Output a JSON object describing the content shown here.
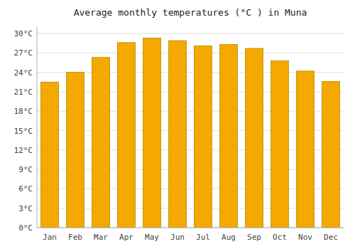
{
  "chart_data": {
    "type": "bar",
    "title": "Average monthly temperatures (°C ) in Muna",
    "categories": [
      "Jan",
      "Feb",
      "Mar",
      "Apr",
      "May",
      "Jun",
      "Jul",
      "Aug",
      "Sep",
      "Oct",
      "Nov",
      "Dec"
    ],
    "values": [
      22.5,
      24.0,
      26.3,
      28.6,
      29.3,
      28.9,
      28.1,
      28.3,
      27.7,
      25.8,
      24.2,
      22.6
    ],
    "color": "#F5A800",
    "ylim": [
      0,
      31
    ],
    "yticks": [
      {
        "value": 0,
        "label": "0°C"
      },
      {
        "value": 3,
        "label": "3°C"
      },
      {
        "value": 6,
        "label": "6°C"
      },
      {
        "value": 9,
        "label": "9°C"
      },
      {
        "value": 12,
        "label": "12°C"
      },
      {
        "value": 15,
        "label": "15°C"
      },
      {
        "value": 18,
        "label": "18°C"
      },
      {
        "value": 21,
        "label": "21°C"
      },
      {
        "value": 24,
        "label": "24°C"
      },
      {
        "value": 27,
        "label": "27°C"
      },
      {
        "value": 30,
        "label": "30°C"
      }
    ],
    "grid": true
  }
}
